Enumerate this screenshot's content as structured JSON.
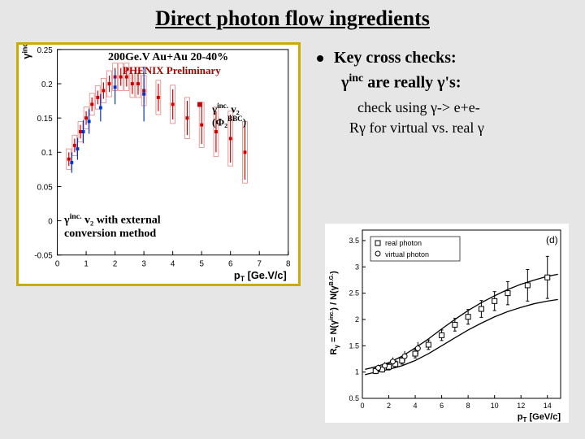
{
  "title": "Direct photon flow ingredients",
  "left_chart": {
    "type": "scatter-error",
    "background_color": "#ffffff",
    "border_color": "#ccaa00",
    "xlim": [
      0,
      8
    ],
    "ylim": [
      -0.05,
      0.25
    ],
    "xticks": [
      0,
      1,
      2,
      3,
      4,
      5,
      6,
      7,
      8
    ],
    "yticks": [
      -0.05,
      0,
      0.05,
      0.1,
      0.15,
      0.2,
      0.25
    ],
    "xlabel": "p_T [Ge.V/c]",
    "ylabel": "γ^{inc.} v_2",
    "label_fontsize": 13,
    "tick_fontsize": 10,
    "header1": "200Ge.V Au+Au 20-40%",
    "header2": "PHENIX Preliminary",
    "legend1": "γ^{inc.} v₂",
    "legend2": "(Φ₂^{BBC})",
    "conversion_label": "γ^{inc.} v₂ with external\nconversion method",
    "series_red": {
      "color": "#cc0000",
      "marker": "square",
      "marker_size": 4,
      "x": [
        0.4,
        0.6,
        0.8,
        1.0,
        1.2,
        1.4,
        1.6,
        1.8,
        2.0,
        2.2,
        2.4,
        2.6,
        2.8,
        3.0,
        3.5,
        4.0,
        4.5,
        5.0,
        5.5,
        6.0,
        6.5
      ],
      "y": [
        0.09,
        0.11,
        0.13,
        0.15,
        0.17,
        0.18,
        0.19,
        0.2,
        0.21,
        0.21,
        0.21,
        0.2,
        0.2,
        0.19,
        0.18,
        0.17,
        0.15,
        0.14,
        0.13,
        0.12,
        0.1
      ],
      "ey": [
        0.01,
        0.01,
        0.01,
        0.01,
        0.01,
        0.01,
        0.012,
        0.012,
        0.013,
        0.013,
        0.014,
        0.015,
        0.016,
        0.018,
        0.02,
        0.022,
        0.025,
        0.028,
        0.03,
        0.035,
        0.04
      ],
      "box_ey": [
        0.015,
        0.015,
        0.015,
        0.016,
        0.016,
        0.017,
        0.018,
        0.019,
        0.02,
        0.02,
        0.02,
        0.02,
        0.02,
        0.022,
        0.025,
        0.028,
        0.03,
        0.033,
        0.036,
        0.04,
        0.045
      ]
    },
    "series_blue": {
      "color": "#0033cc",
      "marker": "square",
      "marker_size": 4,
      "x": [
        0.5,
        0.7,
        0.9,
        1.1,
        1.5,
        2.0,
        3.0
      ],
      "y": [
        0.085,
        0.105,
        0.13,
        0.145,
        0.165,
        0.195,
        0.185
      ],
      "ey": [
        0.015,
        0.016,
        0.017,
        0.018,
        0.02,
        0.025,
        0.04
      ]
    }
  },
  "right_text": {
    "line1a": "Key cross checks:",
    "line2_pre": "γ",
    "line2_sup": "inc",
    "line2_post": " are really γ's:",
    "line3": "check using γ-> e+e-",
    "line4": "Rγ for virtual vs. real γ"
  },
  "right_chart": {
    "type": "scatter-error",
    "background_color": "#ffffff",
    "xlim": [
      0,
      15
    ],
    "ylim": [
      0.5,
      3.7
    ],
    "xticks": [
      0,
      2,
      4,
      6,
      8,
      10,
      12,
      14
    ],
    "yticks": [
      0.5,
      1.0,
      1.5,
      2.0,
      2.5,
      3.0,
      3.5
    ],
    "xlabel": "p_T [GeV/c]",
    "ylabel": "R_γ = N(γ^{inc.}) / N(γ^{B.G.})",
    "label_fontsize": 11,
    "tick_fontsize": 9,
    "panel_label": "(d)",
    "legend_real": "real photon",
    "legend_virtual": "virtual photon",
    "curves": {
      "color": "#000000",
      "x": [
        0.2,
        1,
        2,
        3,
        4,
        5,
        6,
        7,
        8,
        9,
        10,
        11,
        12,
        13,
        14,
        14.8
      ],
      "y_lo": [
        0.95,
        1.0,
        1.05,
        1.12,
        1.22,
        1.35,
        1.5,
        1.65,
        1.8,
        1.93,
        2.05,
        2.15,
        2.23,
        2.3,
        2.35,
        2.38
      ],
      "y_hi": [
        1.05,
        1.1,
        1.18,
        1.3,
        1.46,
        1.63,
        1.82,
        2.0,
        2.17,
        2.32,
        2.45,
        2.57,
        2.67,
        2.75,
        2.82,
        2.86
      ]
    },
    "points_real": {
      "color": "#000000",
      "marker": "open-square",
      "x": [
        1.0,
        1.5,
        2.0,
        2.5,
        3.0,
        4.0,
        5.0,
        6.0,
        7.0,
        8.0,
        9.0,
        10.0,
        11.0,
        12.5,
        14.0
      ],
      "y": [
        1.02,
        1.05,
        1.1,
        1.15,
        1.22,
        1.35,
        1.52,
        1.7,
        1.9,
        2.05,
        2.2,
        2.35,
        2.5,
        2.65,
        2.8
      ],
      "ey": [
        0.05,
        0.05,
        0.06,
        0.06,
        0.07,
        0.08,
        0.09,
        0.1,
        0.12,
        0.14,
        0.16,
        0.18,
        0.22,
        0.3,
        0.4
      ]
    },
    "points_virtual": {
      "color": "#000000",
      "marker": "open-circle",
      "x": [
        1.2,
        1.7,
        2.3,
        3.2,
        4.2
      ],
      "y": [
        1.08,
        1.12,
        1.2,
        1.3,
        1.45
      ],
      "ey": [
        0.06,
        0.07,
        0.08,
        0.1,
        0.12
      ]
    }
  }
}
